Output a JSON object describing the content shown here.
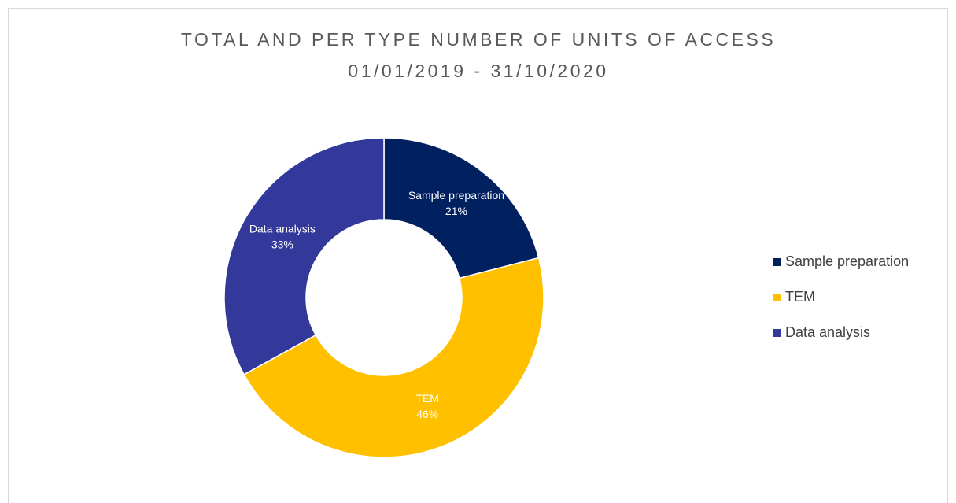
{
  "chart_data": {
    "type": "donut",
    "title": "TOTAL AND PER TYPE NUMBER OF UNITS OF ACCESS",
    "subtitle": "01/01/2019 - 31/10/2020",
    "categories": [
      "Sample preparation",
      "TEM",
      "Data analysis"
    ],
    "values": [
      21,
      46,
      33
    ],
    "value_labels": [
      "21%",
      "46%",
      "33%"
    ],
    "colors": [
      "#00205f",
      "#ffc000",
      "#33399b"
    ],
    "legend": "right"
  }
}
